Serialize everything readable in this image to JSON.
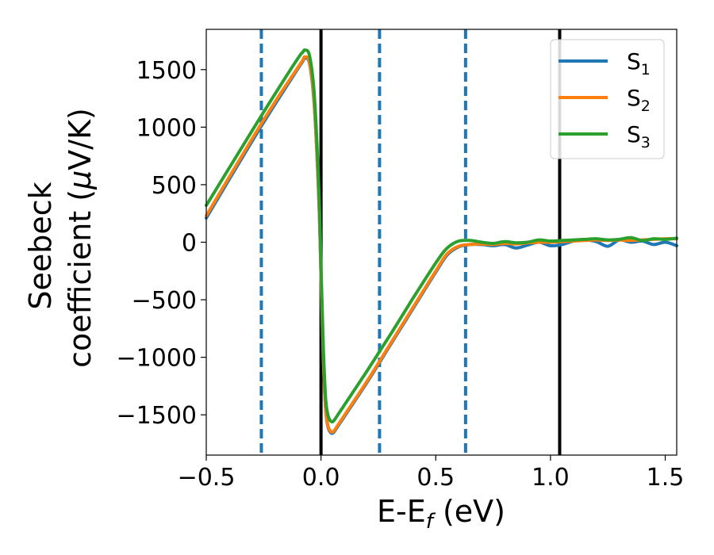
{
  "chart_data": {
    "type": "line",
    "title": "",
    "xlabel": {
      "main": "E-E",
      "sub": "f",
      "unit": " (eV)"
    },
    "ylabel": {
      "line1": "Seebeck",
      "line2_prefix": "coefficient  (",
      "mu": "μ",
      "line2_suffix": "V/K)"
    },
    "xlim": [
      -0.5,
      1.55
    ],
    "ylim": [
      -1850,
      1850
    ],
    "xticks": [
      -0.5,
      0.0,
      0.5,
      1.0,
      1.5
    ],
    "xtick_labels": [
      "−0.5",
      "0.0",
      "0.5",
      "1.0",
      "1.5"
    ],
    "yticks": [
      1500,
      1000,
      500,
      0,
      -500,
      -1000,
      -1500
    ],
    "ytick_labels": [
      "1500",
      "1000",
      "500",
      "0",
      "−500",
      "−1000",
      "−1500"
    ],
    "grid": false,
    "legend_position": "top-right",
    "vlines_solid": [
      0.0,
      1.04
    ],
    "vlines_dashed": [
      -0.26,
      0.255,
      0.63
    ],
    "colors": {
      "solid_vline": "#000000",
      "dashed_vline": "#1f77b4"
    },
    "series": [
      {
        "name": "S",
        "sub": "1",
        "color": "#1f77b4",
        "x": [
          -0.5,
          -0.3,
          -0.2,
          -0.1,
          -0.08,
          -0.07,
          -0.05,
          -0.03,
          -0.01,
          0.0,
          0.01,
          0.02,
          0.03,
          0.04,
          0.05,
          0.06,
          0.08,
          0.1,
          0.2,
          0.3,
          0.4,
          0.5,
          0.55,
          0.6,
          0.65,
          0.7,
          0.75,
          0.8,
          0.85,
          0.9,
          0.95,
          1.0,
          1.05,
          1.1,
          1.15,
          1.2,
          1.25,
          1.3,
          1.35,
          1.4,
          1.45,
          1.5,
          1.55
        ],
        "y": [
          210,
          880,
          1200,
          1510,
          1570,
          1600,
          1550,
          1200,
          400,
          -300,
          -1000,
          -1450,
          -1600,
          -1650,
          -1660,
          -1640,
          -1580,
          -1520,
          -1220,
          -900,
          -580,
          -260,
          -110,
          -40,
          -20,
          -20,
          -30,
          -20,
          -50,
          -25,
          0,
          -30,
          -20,
          10,
          20,
          5,
          -35,
          20,
          0,
          10,
          -20,
          0,
          -30
        ]
      },
      {
        "name": "S",
        "sub": "2",
        "color": "#ff7f0e",
        "x": [
          -0.5,
          -0.3,
          -0.2,
          -0.1,
          -0.08,
          -0.07,
          -0.05,
          -0.03,
          -0.01,
          0.0,
          0.01,
          0.02,
          0.03,
          0.04,
          0.05,
          0.06,
          0.08,
          0.1,
          0.2,
          0.3,
          0.4,
          0.5,
          0.55,
          0.6,
          0.65,
          0.7,
          0.75,
          0.8,
          0.85,
          0.9,
          0.95,
          1.0,
          1.05,
          1.1,
          1.15,
          1.2,
          1.25,
          1.3,
          1.35,
          1.4,
          1.45,
          1.5,
          1.55
        ],
        "y": [
          230,
          900,
          1220,
          1520,
          1580,
          1610,
          1560,
          1210,
          420,
          -280,
          -990,
          -1440,
          -1590,
          -1640,
          -1650,
          -1630,
          -1570,
          -1510,
          -1210,
          -890,
          -570,
          -250,
          -100,
          -35,
          -20,
          -15,
          -20,
          -10,
          -15,
          -5,
          0,
          0,
          5,
          10,
          15,
          20,
          15,
          20,
          15,
          20,
          25,
          30,
          30
        ]
      },
      {
        "name": "S",
        "sub": "3",
        "color": "#2ca02c",
        "x": [
          -0.5,
          -0.3,
          -0.2,
          -0.1,
          -0.08,
          -0.07,
          -0.05,
          -0.03,
          -0.01,
          0.0,
          0.01,
          0.02,
          0.03,
          0.04,
          0.05,
          0.06,
          0.08,
          0.1,
          0.2,
          0.3,
          0.4,
          0.5,
          0.55,
          0.6,
          0.65,
          0.7,
          0.75,
          0.8,
          0.85,
          0.9,
          0.95,
          1.0,
          1.05,
          1.1,
          1.15,
          1.2,
          1.25,
          1.3,
          1.35,
          1.4,
          1.45,
          1.5,
          1.55
        ],
        "y": [
          320,
          970,
          1290,
          1600,
          1650,
          1670,
          1620,
          1300,
          500,
          -200,
          -900,
          -1350,
          -1500,
          -1550,
          -1560,
          -1540,
          -1480,
          -1420,
          -1120,
          -810,
          -490,
          -180,
          -50,
          10,
          15,
          0,
          -10,
          5,
          -5,
          0,
          20,
          10,
          15,
          20,
          25,
          30,
          20,
          25,
          40,
          15,
          30,
          25,
          35
        ]
      }
    ]
  }
}
